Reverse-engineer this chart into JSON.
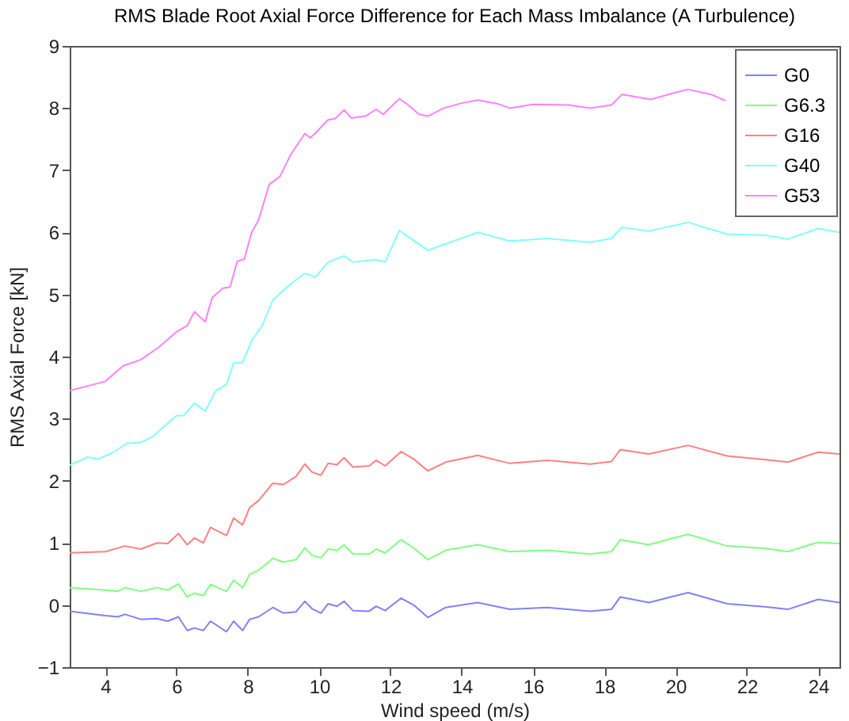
{
  "chart_data": {
    "type": "line",
    "title": "RMS Blade Root Axial Force Difference for Each Mass Imbalance (A Turbulence)",
    "xlabel": "Wind speed (m/s)",
    "ylabel": "RMS Axial Force [kN]",
    "xlim": [
      3,
      24.6
    ],
    "xticks": [
      4,
      6,
      8,
      10,
      12,
      14,
      16,
      18,
      20,
      22,
      24
    ],
    "ylim": [
      -1,
      9
    ],
    "yticks": [
      -1,
      0,
      1,
      2,
      3,
      4,
      5,
      6,
      7,
      8,
      9
    ],
    "grid": false,
    "legend": "top right",
    "series": [
      {
        "name": "G0",
        "color": "#8080ff",
        "x": [
          3.0,
          4.0,
          4.35,
          4.55,
          5.0,
          5.45,
          5.75,
          6.05,
          6.3,
          6.5,
          6.75,
          6.95,
          7.4,
          7.6,
          7.85,
          8.05,
          8.3,
          8.7,
          9.0,
          9.35,
          9.6,
          9.8,
          10.05,
          10.25,
          10.5,
          10.7,
          10.95,
          11.4,
          11.6,
          11.85,
          12.3,
          12.65,
          13.05,
          13.55,
          14.45,
          15.35,
          16.4,
          17.6,
          18.2,
          18.45,
          19.25,
          20.35,
          21.45,
          22.55,
          23.15,
          24.0,
          24.6
        ],
        "values": [
          -0.1,
          -0.17,
          -0.19,
          -0.15,
          -0.23,
          -0.22,
          -0.26,
          -0.19,
          -0.41,
          -0.37,
          -0.41,
          -0.26,
          -0.43,
          -0.26,
          -0.41,
          -0.23,
          -0.19,
          -0.04,
          -0.13,
          -0.11,
          0.06,
          -0.06,
          -0.13,
          0.02,
          -0.02,
          0.06,
          -0.09,
          -0.1,
          -0.02,
          -0.09,
          0.11,
          0,
          -0.2,
          -0.04,
          0.04,
          -0.07,
          -0.04,
          -0.1,
          -0.07,
          0.13,
          0.04,
          0.2,
          0.02,
          -0.03,
          -0.07,
          0.09,
          0.04
        ]
      },
      {
        "name": "G6.3",
        "color": "#80ff80",
        "x": [
          3.0,
          4.0,
          4.35,
          4.55,
          5.0,
          5.45,
          5.75,
          6.05,
          6.3,
          6.5,
          6.75,
          6.95,
          7.4,
          7.6,
          7.85,
          8.05,
          8.3,
          8.7,
          9.0,
          9.35,
          9.6,
          9.8,
          10.05,
          10.25,
          10.5,
          10.7,
          10.95,
          11.4,
          11.6,
          11.85,
          12.3,
          12.65,
          13.05,
          13.55,
          14.45,
          15.35,
          16.4,
          17.6,
          18.2,
          18.45,
          19.25,
          20.35,
          21.45,
          22.55,
          23.15,
          24.0,
          24.6
        ],
        "values": [
          0.28,
          0.24,
          0.22,
          0.28,
          0.22,
          0.28,
          0.24,
          0.34,
          0.13,
          0.19,
          0.15,
          0.33,
          0.22,
          0.4,
          0.28,
          0.49,
          0.56,
          0.75,
          0.69,
          0.73,
          0.92,
          0.8,
          0.76,
          0.9,
          0.88,
          0.97,
          0.82,
          0.82,
          0.9,
          0.84,
          1.05,
          0.92,
          0.73,
          0.88,
          0.97,
          0.86,
          0.88,
          0.82,
          0.86,
          1.05,
          0.97,
          1.14,
          0.95,
          0.91,
          0.86,
          1.01,
          0.99
        ]
      },
      {
        "name": "G16",
        "color": "#ff8080",
        "x": [
          3.0,
          4.0,
          4.55,
          5.0,
          5.45,
          5.75,
          6.05,
          6.3,
          6.5,
          6.75,
          6.95,
          7.4,
          7.6,
          7.85,
          8.05,
          8.3,
          8.7,
          9.0,
          9.35,
          9.6,
          9.8,
          10.05,
          10.25,
          10.5,
          10.7,
          10.95,
          11.4,
          11.6,
          11.85,
          12.3,
          12.65,
          13.05,
          13.55,
          14.45,
          15.35,
          16.4,
          17.6,
          18.2,
          18.45,
          19.25,
          20.35,
          21.45,
          22.55,
          23.15,
          24.0,
          24.6
        ],
        "values": [
          0.84,
          0.86,
          0.95,
          0.9,
          1.0,
          0.99,
          1.15,
          0.97,
          1.08,
          1.0,
          1.25,
          1.12,
          1.4,
          1.29,
          1.57,
          1.68,
          1.96,
          1.94,
          2.07,
          2.27,
          2.14,
          2.09,
          2.28,
          2.26,
          2.37,
          2.22,
          2.24,
          2.33,
          2.24,
          2.47,
          2.35,
          2.16,
          2.3,
          2.41,
          2.28,
          2.33,
          2.27,
          2.31,
          2.5,
          2.43,
          2.57,
          2.4,
          2.34,
          2.3,
          2.46,
          2.43
        ]
      },
      {
        "name": "G40",
        "color": "#80ffff",
        "x": [
          3,
          3.5,
          3.8,
          4.2,
          4.6,
          5,
          5.3,
          5.6,
          6,
          6.2,
          6.5,
          6.8,
          7.1,
          7.4,
          7.6,
          7.85,
          8.1,
          8.4,
          8.7,
          9.2,
          9.6,
          9.9,
          10.25,
          10.7,
          10.95,
          11.6,
          11.85,
          12.25,
          13.05,
          14.45,
          15.35,
          16.4,
          17.6,
          18.2,
          18.5,
          19.25,
          20.35,
          21.45,
          22.55,
          23.15,
          24,
          24.6
        ],
        "values": [
          2.25,
          2.38,
          2.35,
          2.45,
          2.6,
          2.62,
          2.7,
          2.85,
          3.05,
          3.05,
          3.25,
          3.12,
          3.45,
          3.55,
          3.9,
          3.9,
          4.25,
          4.5,
          4.91,
          5.17,
          5.34,
          5.28,
          5.52,
          5.62,
          5.52,
          5.56,
          5.52,
          6.03,
          5.71,
          6.0,
          5.86,
          5.9,
          5.84,
          5.9,
          6.08,
          6.02,
          6.16,
          5.97,
          5.95,
          5.89,
          6.06,
          6.0
        ]
      },
      {
        "name": "G53",
        "color": "#ff80ff",
        "x": [
          3,
          4,
          4.5,
          5,
          5.5,
          6,
          6.3,
          6.5,
          6.8,
          7,
          7.3,
          7.5,
          7.7,
          7.9,
          8.1,
          8.3,
          8.6,
          8.9,
          9.2,
          9.6,
          9.75,
          9.9,
          10.25,
          10.45,
          10.7,
          10.9,
          11.3,
          11.6,
          11.8,
          12.25,
          12.5,
          12.8,
          13.05,
          13.5,
          14,
          14.45,
          15,
          15.35,
          16,
          17,
          17.6,
          18.2,
          18.5,
          19,
          19.3,
          20,
          20.35,
          21,
          21.4
        ],
        "values": [
          3.45,
          3.6,
          3.85,
          3.95,
          4.15,
          4.4,
          4.5,
          4.72,
          4.56,
          4.95,
          5.1,
          5.12,
          5.53,
          5.57,
          5.99,
          6.2,
          6.77,
          6.9,
          7.25,
          7.59,
          7.52,
          7.6,
          7.81,
          7.83,
          7.97,
          7.84,
          7.87,
          7.98,
          7.9,
          8.15,
          8.05,
          7.9,
          7.87,
          8.0,
          8.08,
          8.13,
          8.07,
          8.0,
          8.06,
          8.05,
          8.0,
          8.05,
          8.22,
          8.17,
          8.14,
          8.25,
          8.3,
          8.22,
          8.12
        ]
      }
    ]
  }
}
